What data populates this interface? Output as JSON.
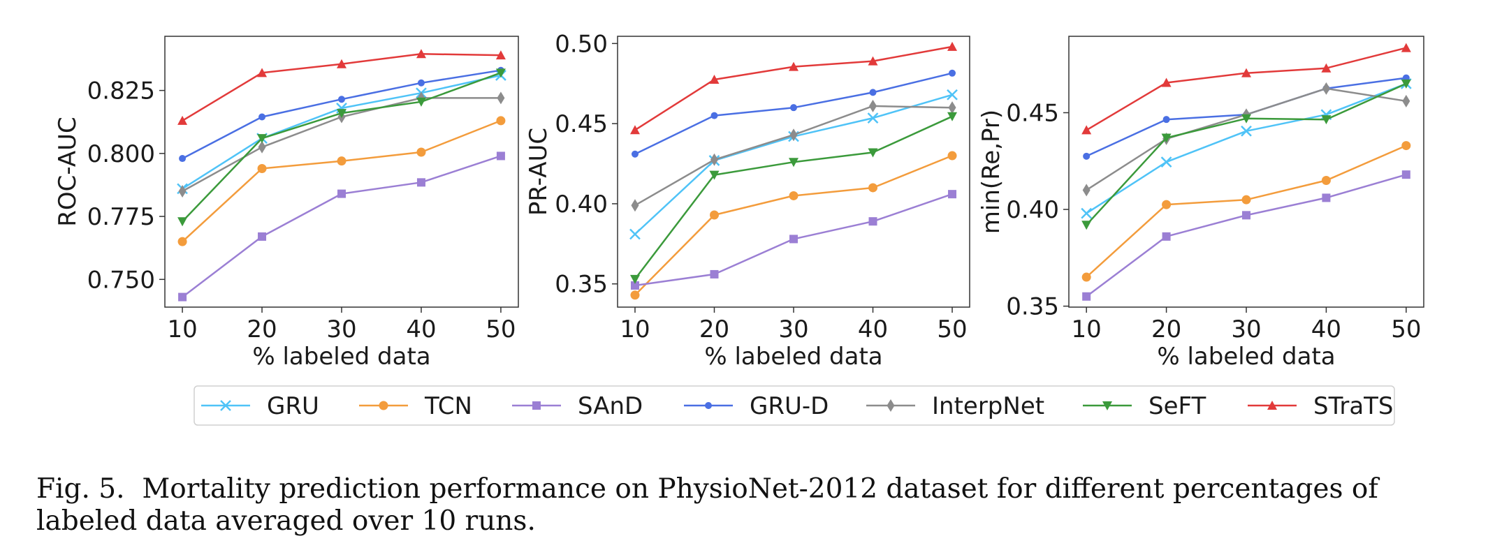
{
  "caption": {
    "label": "Fig. 5.",
    "text": "Mortality prediction performance on PhysioNet-2012 dataset for different percentages of labeled data averaged over 10 runs."
  },
  "legend": [
    {
      "name": "GRU",
      "color": "#4fc3f7",
      "marker": "x"
    },
    {
      "name": "TCN",
      "color": "#f39c3c",
      "marker": "circle"
    },
    {
      "name": "SAnD",
      "color": "#9b7fd4",
      "marker": "square"
    },
    {
      "name": "GRU-D",
      "color": "#4a6fe3",
      "marker": "circle-small"
    },
    {
      "name": "InterpNet",
      "color": "#8c8c8c",
      "marker": "diamond"
    },
    {
      "name": "SeFT",
      "color": "#3b9a3b",
      "marker": "triangle-down"
    },
    {
      "name": "STraTS",
      "color": "#e23a3a",
      "marker": "triangle-up"
    }
  ],
  "chart_data": [
    {
      "type": "line",
      "xlabel": "% labeled data",
      "ylabel": "ROC-AUC",
      "x": [
        10,
        20,
        30,
        40,
        50
      ],
      "xticks": [
        "10",
        "20",
        "30",
        "40",
        "50"
      ],
      "ylim": [
        0.739,
        0.8465
      ],
      "yticks": [
        0.75,
        0.775,
        0.8,
        0.825
      ],
      "ytick_labels": [
        "0.750",
        "0.775",
        "0.800",
        "0.825"
      ],
      "series": [
        {
          "name": "GRU",
          "values": [
            0.786,
            0.806,
            0.818,
            0.824,
            0.831
          ]
        },
        {
          "name": "TCN",
          "values": [
            0.765,
            0.794,
            0.797,
            0.8005,
            0.813
          ]
        },
        {
          "name": "SAnD",
          "values": [
            0.743,
            0.767,
            0.784,
            0.7885,
            0.799
          ]
        },
        {
          "name": "GRU-D",
          "values": [
            0.798,
            0.8145,
            0.8215,
            0.828,
            0.833
          ]
        },
        {
          "name": "InterpNet",
          "values": [
            0.785,
            0.8025,
            0.8145,
            0.822,
            0.822
          ]
        },
        {
          "name": "SeFT",
          "values": [
            0.773,
            0.806,
            0.816,
            0.8205,
            0.832
          ]
        },
        {
          "name": "STraTS",
          "values": [
            0.813,
            0.832,
            0.8355,
            0.8395,
            0.839
          ]
        }
      ]
    },
    {
      "type": "line",
      "xlabel": "% labeled data",
      "ylabel": "PR-AUC",
      "x": [
        10,
        20,
        30,
        40,
        50
      ],
      "xticks": [
        "10",
        "20",
        "30",
        "40",
        "50"
      ],
      "ylim": [
        0.3355,
        0.5045
      ],
      "yticks": [
        0.35,
        0.4,
        0.45,
        0.5
      ],
      "ytick_labels": [
        "0.35",
        "0.40",
        "0.45",
        "0.50"
      ],
      "series": [
        {
          "name": "GRU",
          "values": [
            0.381,
            0.427,
            0.442,
            0.4535,
            0.468
          ]
        },
        {
          "name": "TCN",
          "values": [
            0.343,
            0.393,
            0.405,
            0.41,
            0.43
          ]
        },
        {
          "name": "SAnD",
          "values": [
            0.349,
            0.356,
            0.378,
            0.389,
            0.406
          ]
        },
        {
          "name": "GRU-D",
          "values": [
            0.431,
            0.455,
            0.46,
            0.4695,
            0.4815
          ]
        },
        {
          "name": "InterpNet",
          "values": [
            0.399,
            0.4275,
            0.443,
            0.461,
            0.46
          ]
        },
        {
          "name": "SeFT",
          "values": [
            0.353,
            0.418,
            0.426,
            0.432,
            0.4545
          ]
        },
        {
          "name": "STraTS",
          "values": [
            0.446,
            0.4775,
            0.4855,
            0.489,
            0.498
          ]
        }
      ]
    },
    {
      "type": "line",
      "xlabel": "% labeled data",
      "ylabel": "min(Re,Pr)",
      "x": [
        10,
        20,
        30,
        40,
        50
      ],
      "xticks": [
        "10",
        "20",
        "30",
        "40",
        "50"
      ],
      "ylim": [
        0.3495,
        0.4895
      ],
      "yticks": [
        0.35,
        0.4,
        0.45
      ],
      "ytick_labels": [
        "0.35",
        "0.40",
        "0.45"
      ],
      "series": [
        {
          "name": "GRU",
          "values": [
            0.398,
            0.4245,
            0.4405,
            0.449,
            0.465
          ]
        },
        {
          "name": "TCN",
          "values": [
            0.365,
            0.4025,
            0.405,
            0.415,
            0.433
          ]
        },
        {
          "name": "SAnD",
          "values": [
            0.355,
            0.386,
            0.397,
            0.406,
            0.418
          ]
        },
        {
          "name": "GRU-D",
          "values": [
            0.4275,
            0.4465,
            0.449,
            0.4625,
            0.468
          ]
        },
        {
          "name": "InterpNet",
          "values": [
            0.41,
            0.4365,
            0.449,
            0.4625,
            0.456
          ]
        },
        {
          "name": "SeFT",
          "values": [
            0.392,
            0.437,
            0.447,
            0.4465,
            0.465
          ]
        },
        {
          "name": "STraTS",
          "values": [
            0.441,
            0.4655,
            0.4705,
            0.473,
            0.4835
          ]
        }
      ]
    }
  ]
}
